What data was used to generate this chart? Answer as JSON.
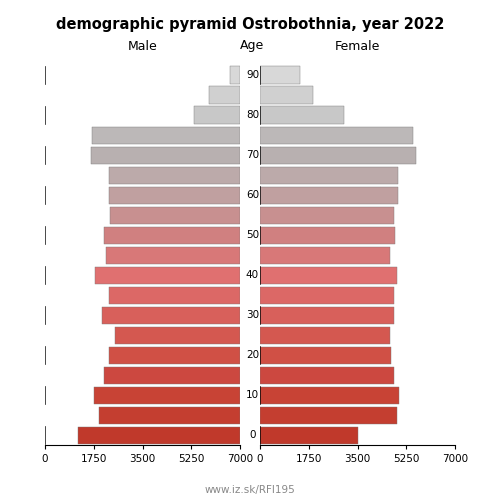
{
  "title": "demographic pyramid Ostrobothnia, year 2022",
  "male_label": "Male",
  "female_label": "Female",
  "age_label": "Age",
  "footer": "www.iz.sk/RFI195",
  "male_values": [
    5800,
    5050,
    5250,
    4900,
    4700,
    4500,
    4950,
    4700,
    5200,
    4800,
    4900,
    4650,
    4700,
    4700,
    5350,
    5300,
    1650,
    1100,
    350
  ],
  "female_values": [
    3500,
    4900,
    5000,
    4800,
    4700,
    4650,
    4800,
    4800,
    4900,
    4650,
    4850,
    4800,
    4950,
    4950,
    5600,
    5500,
    3000,
    1900,
    1450
  ],
  "male_colors": [
    "#c0392b",
    "#c43e30",
    "#c84335",
    "#cc4840",
    "#d05045",
    "#d45850",
    "#d8605b",
    "#dc6866",
    "#e07070",
    "#d87878",
    "#d08080",
    "#c89090",
    "#c0a0a0",
    "#bcaaaa",
    "#b8b0b0",
    "#bcb8b8",
    "#c8c8c8",
    "#d0d0d0",
    "#d8d8d8"
  ],
  "female_colors": [
    "#c0392b",
    "#c43e30",
    "#c84335",
    "#cc4840",
    "#d05045",
    "#d45850",
    "#d8605b",
    "#dc6866",
    "#e07070",
    "#d87878",
    "#d08080",
    "#c89090",
    "#c0a0a0",
    "#bcaaaa",
    "#b8b0b0",
    "#bcb8b8",
    "#c8c8c8",
    "#d0d0d0",
    "#d8d8d8"
  ],
  "xlim": 7000,
  "xticks": [
    0,
    1750,
    3500,
    5250,
    7000
  ],
  "age_tick_positions": [
    0,
    2,
    4,
    6,
    8,
    10,
    12,
    14,
    16,
    18
  ],
  "age_tick_labels": [
    "0",
    "10",
    "20",
    "30",
    "40",
    "50",
    "60",
    "70",
    "80",
    "90"
  ]
}
